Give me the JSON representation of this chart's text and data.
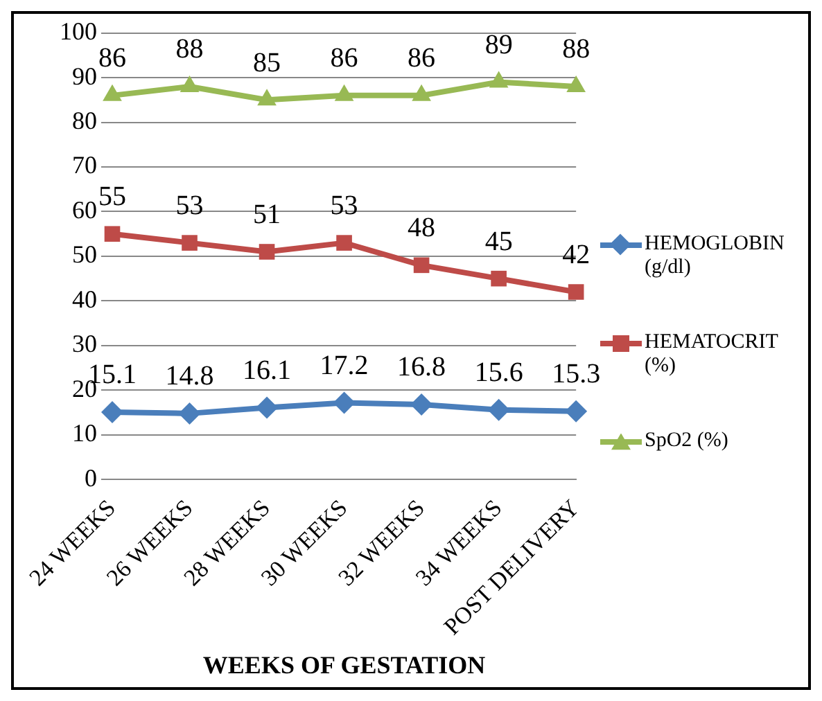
{
  "chart_data": {
    "type": "line",
    "xlabel": "WEEKS OF GESTATION",
    "categories": [
      "24 WEEKS",
      "26 WEEKS",
      "28 WEEKS",
      "30 WEEKS",
      "32 WEEKS",
      "34 WEEKS",
      "POST DELIVERY"
    ],
    "series": [
      {
        "name": "HEMOGLOBIN (g/dl)",
        "color": "#4a7ebb",
        "marker": "diamond",
        "values": [
          15.1,
          14.8,
          16.1,
          17.2,
          16.8,
          15.6,
          15.3
        ]
      },
      {
        "name": "HEMATOCRIT (%)",
        "color": "#be4b48",
        "marker": "square",
        "values": [
          55,
          53,
          51,
          53,
          48,
          45,
          42
        ]
      },
      {
        "name": "SpO2 (%)",
        "color": "#98b954",
        "marker": "triangle",
        "values": [
          86,
          88,
          85,
          86,
          86,
          89,
          88
        ]
      }
    ],
    "ylim": [
      0,
      100
    ],
    "yticks": [
      0,
      10,
      20,
      30,
      40,
      50,
      60,
      70,
      80,
      90,
      100
    ],
    "grid": "y",
    "legend": "right",
    "data_labels": true,
    "line_style": "solid"
  }
}
